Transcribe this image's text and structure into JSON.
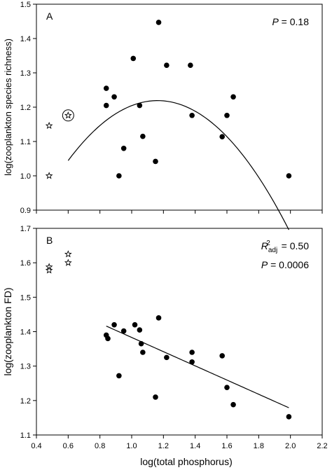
{
  "figure": {
    "xlabel": "log(total phosphorus)"
  },
  "chart_data": [
    {
      "type": "scatter",
      "panel_label": "A",
      "xlabel": "log(total phosphorus)",
      "ylabel": "log(zooplankton species richness)",
      "xlim": [
        0.4,
        2.2
      ],
      "ylim": [
        0.9,
        1.5
      ],
      "x_ticks": [
        "0.4",
        "0.6",
        "0.8",
        "1.0",
        "1.2",
        "1.4",
        "1.6",
        "1.8",
        "2.0",
        "2.2"
      ],
      "y_ticks": [
        "0.9",
        "1.0",
        "1.1",
        "1.2",
        "1.3",
        "1.4",
        "1.5"
      ],
      "grid": false,
      "annotation": {
        "symbol": "P",
        "text": " = 0.18"
      },
      "series": [
        {
          "marker": "circle-filled",
          "points": [
            {
              "x": 0.84,
              "y": 1.255
            },
            {
              "x": 0.84,
              "y": 1.205
            },
            {
              "x": 0.89,
              "y": 1.23
            },
            {
              "x": 0.92,
              "y": 1.0
            },
            {
              "x": 0.95,
              "y": 1.08
            },
            {
              "x": 1.01,
              "y": 1.342
            },
            {
              "x": 1.05,
              "y": 1.205
            },
            {
              "x": 1.07,
              "y": 1.115
            },
            {
              "x": 1.15,
              "y": 1.042
            },
            {
              "x": 1.17,
              "y": 1.447
            },
            {
              "x": 1.22,
              "y": 1.322
            },
            {
              "x": 1.37,
              "y": 1.322
            },
            {
              "x": 1.38,
              "y": 1.176
            },
            {
              "x": 1.57,
              "y": 1.114
            },
            {
              "x": 1.6,
              "y": 1.176
            },
            {
              "x": 1.64,
              "y": 1.23
            },
            {
              "x": 1.99,
              "y": 1.0
            }
          ]
        },
        {
          "marker": "star-open",
          "points": [
            {
              "x": 0.48,
              "y": 1.146
            },
            {
              "x": 0.48,
              "y": 1.0
            },
            {
              "x": 0.6,
              "y": 1.176
            }
          ]
        }
      ],
      "circled_points": [
        {
          "x": 0.6,
          "y": 1.176
        }
      ],
      "fit": {
        "type": "quadratic",
        "x_range": [
          0.6,
          1.99
        ],
        "coefficients": [
          0.474,
          1.2813,
          -0.5508
        ]
      }
    },
    {
      "type": "scatter",
      "panel_label": "B",
      "xlabel": "log(total phosphorus)",
      "ylabel": "log(zooplankton FD)",
      "xlim": [
        0.4,
        2.2
      ],
      "ylim": [
        1.1,
        1.7
      ],
      "x_ticks": [
        "0.4",
        "0.6",
        "0.8",
        "1.0",
        "1.2",
        "1.4",
        "1.6",
        "1.8",
        "2.0",
        "2.2"
      ],
      "y_ticks": [
        "1.1",
        "1.2",
        "1.3",
        "1.4",
        "1.5",
        "1.6",
        "1.7"
      ],
      "grid": false,
      "annotations": [
        {
          "symbol": "R",
          "sup": "2",
          "sub": "adj",
          "text": " = 0.50"
        },
        {
          "symbol": "P",
          "text": " = 0.0006"
        }
      ],
      "series": [
        {
          "marker": "circle-filled",
          "points": [
            {
              "x": 0.84,
              "y": 1.39
            },
            {
              "x": 0.85,
              "y": 1.38
            },
            {
              "x": 0.89,
              "y": 1.42
            },
            {
              "x": 0.92,
              "y": 1.272
            },
            {
              "x": 0.95,
              "y": 1.402
            },
            {
              "x": 1.02,
              "y": 1.42
            },
            {
              "x": 1.05,
              "y": 1.405
            },
            {
              "x": 1.06,
              "y": 1.365
            },
            {
              "x": 1.07,
              "y": 1.34
            },
            {
              "x": 1.15,
              "y": 1.21
            },
            {
              "x": 1.17,
              "y": 1.44
            },
            {
              "x": 1.22,
              "y": 1.325
            },
            {
              "x": 1.38,
              "y": 1.34
            },
            {
              "x": 1.38,
              "y": 1.312
            },
            {
              "x": 1.57,
              "y": 1.33
            },
            {
              "x": 1.6,
              "y": 1.238
            },
            {
              "x": 1.64,
              "y": 1.188
            },
            {
              "x": 1.99,
              "y": 1.153
            }
          ]
        },
        {
          "marker": "star-open",
          "points": [
            {
              "x": 0.48,
              "y": 1.588
            },
            {
              "x": 0.48,
              "y": 1.578
            },
            {
              "x": 0.6,
              "y": 1.625
            },
            {
              "x": 0.6,
              "y": 1.6
            }
          ]
        }
      ],
      "fit": {
        "type": "linear",
        "x_range": [
          0.84,
          1.99
        ],
        "coefficients": [
          1.5894,
          -0.2062
        ]
      }
    }
  ]
}
